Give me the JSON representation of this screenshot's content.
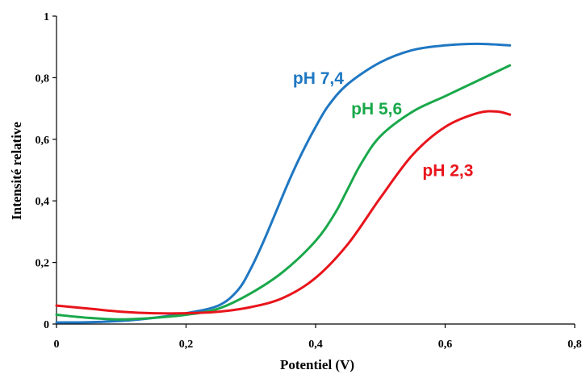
{
  "chart_data": {
    "type": "line",
    "title": "",
    "xlabel": "Potentiel (V)",
    "ylabel": "Intensité relative",
    "xlim": [
      0,
      0.8
    ],
    "ylim": [
      0,
      1
    ],
    "x_ticks": [
      0,
      0.2,
      0.4,
      0.6,
      0.8
    ],
    "x_tick_labels": [
      "0",
      "0,2",
      "0,4",
      "0,6",
      "0,8"
    ],
    "y_ticks": [
      0,
      0.2,
      0.4,
      0.6,
      0.8,
      1
    ],
    "y_tick_labels": [
      "0",
      "0,2",
      "0,4",
      "0,6",
      "0,8",
      "1"
    ],
    "grid": false,
    "legend": "inline labels",
    "series": [
      {
        "name": "pH 7,4",
        "color": "#1f77c2",
        "x": [
          0,
          0.05,
          0.1,
          0.15,
          0.2,
          0.25,
          0.28,
          0.3,
          0.32,
          0.34,
          0.36,
          0.38,
          0.4,
          0.42,
          0.45,
          0.5,
          0.55,
          0.6,
          0.65,
          0.7
        ],
        "y": [
          0.005,
          0.006,
          0.01,
          0.02,
          0.035,
          0.06,
          0.11,
          0.18,
          0.27,
          0.37,
          0.47,
          0.56,
          0.64,
          0.71,
          0.78,
          0.85,
          0.89,
          0.905,
          0.91,
          0.905
        ]
      },
      {
        "name": "pH 5,6",
        "color": "#19a84a",
        "x": [
          0,
          0.05,
          0.1,
          0.15,
          0.2,
          0.25,
          0.3,
          0.35,
          0.4,
          0.43,
          0.45,
          0.47,
          0.5,
          0.55,
          0.6,
          0.65,
          0.7
        ],
        "y": [
          0.03,
          0.02,
          0.015,
          0.02,
          0.03,
          0.05,
          0.1,
          0.17,
          0.27,
          0.36,
          0.44,
          0.52,
          0.61,
          0.69,
          0.74,
          0.79,
          0.84
        ]
      },
      {
        "name": "pH 2,3",
        "color": "#e8141b",
        "x": [
          0,
          0.05,
          0.1,
          0.15,
          0.2,
          0.25,
          0.3,
          0.35,
          0.4,
          0.45,
          0.5,
          0.55,
          0.6,
          0.65,
          0.68,
          0.7
        ],
        "y": [
          0.06,
          0.05,
          0.04,
          0.035,
          0.035,
          0.04,
          0.055,
          0.085,
          0.15,
          0.26,
          0.41,
          0.55,
          0.64,
          0.685,
          0.69,
          0.68
        ]
      }
    ],
    "labels": [
      {
        "text": "pH 7,4",
        "color": "#1f77c2",
        "x": 0.365,
        "y": 0.78
      },
      {
        "text": "pH 5,6",
        "color": "#19a84a",
        "x": 0.455,
        "y": 0.68
      },
      {
        "text": "pH 2,3",
        "color": "#e8141b",
        "x": 0.565,
        "y": 0.48
      }
    ]
  }
}
